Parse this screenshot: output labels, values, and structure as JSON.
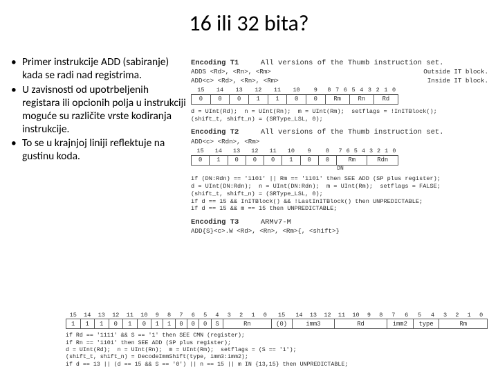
{
  "title": "16 ili 32 bita?",
  "bullets": {
    "b1": "Primer instrukcije ADD (sabiranje) kada se radi nad registrima.",
    "b2": "U zavisnosti od upotrbeljenih registara ili opcionih polja u instrukciji moguće su različite vrste kodiranja instrukcije.",
    "b3": "To se u krajnjoj liniji reflektuje na gustinu koda."
  },
  "enc1": {
    "head_label": "Encoding T1",
    "head_ver": "All versions of the Thumb instruction set.",
    "syntax1": "ADDS <Rd>, <Rn>, <Rm>",
    "syntax1_note": "Outside IT block.",
    "syntax2": "ADD<c> <Rd>, <Rn>, <Rm>",
    "syntax2_note": "Inside IT block.",
    "bits_hdr": [
      "15",
      "14",
      "13",
      "12",
      "11",
      "10",
      "9",
      "8",
      "7",
      "6",
      "5",
      "4",
      "3",
      "2",
      "1",
      "0"
    ],
    "bits_val": [
      "0",
      "0",
      "0",
      "1",
      "1",
      "0",
      "0",
      "Rm",
      "Rn",
      "Rd"
    ],
    "pseudo": "d = UInt(Rd);  n = UInt(Rn);  m = UInt(Rm);  setflags = !InITBlock();\n(shift_t, shift_n) = (SRType_LSL, 0);"
  },
  "enc2": {
    "head_label": "Encoding T2",
    "head_ver": "All versions of the Thumb instruction set.",
    "syntax1": "ADD<c> <Rdn>, <Rm>",
    "bits_hdr": [
      "15",
      "14",
      "13",
      "12",
      "11",
      "10",
      "9",
      "8",
      "7",
      "6",
      "5",
      "4",
      "3",
      "2",
      "1",
      "0"
    ],
    "bits_val": [
      "0",
      "1",
      "0",
      "0",
      "0",
      "1",
      "0",
      "0",
      "Rm",
      "Rdn"
    ],
    "dn_label": "DN",
    "pseudo": "if (DN:Rdn) == '1101' || Rm == '1101' then SEE ADD (SP plus register);\nd = UInt(DN:Rdn);  n = UInt(DN:Rdn);  m = UInt(Rm);  setflags = FALSE;\n(shift_t, shift_n) = (SRType_LSL, 0);\nif d == 15 && InITBlock() && !LastInITBlock() then UNPREDICTABLE;\nif d == 15 && m == 15 then UNPREDICTABLE;"
  },
  "enc3": {
    "head_label": "Encoding T3",
    "head_ver": "ARMv7-M",
    "syntax1": "ADD{S}<c>.W <Rd>, <Rn>, <Rm>{, <shift>}",
    "bits_hdr": [
      "15",
      "14",
      "13",
      "12",
      "11",
      "10",
      "9",
      "8",
      "7",
      "6",
      "5",
      "4",
      "3",
      "2",
      "1",
      "0",
      "15",
      "14",
      "13",
      "12",
      "11",
      "10",
      "9",
      "8",
      "7",
      "6",
      "5",
      "4",
      "3",
      "2",
      "1",
      "0"
    ],
    "bits_val": [
      "1",
      "1",
      "1",
      "0",
      "1",
      "0",
      "1",
      "1",
      "0",
      "0",
      "0",
      "S",
      "Rn",
      "(0)",
      "imm3",
      "Rd",
      "imm2",
      "type",
      "Rm"
    ],
    "pseudo": "if Rd == '1111' && S == '1' then SEE CMN (register);\nif Rn == '1101' then SEE ADD (SP plus register);\nd = UInt(Rd);  n = UInt(Rn);  m = UInt(Rm);  setflags = (S == '1');\n(shift_t, shift_n) = DecodeImmShift(type, imm3:imm2);\nif d == 13 || (d == 15 && S == '0') || n == 15 || m IN {13,15} then UNPREDICTABLE;"
  }
}
